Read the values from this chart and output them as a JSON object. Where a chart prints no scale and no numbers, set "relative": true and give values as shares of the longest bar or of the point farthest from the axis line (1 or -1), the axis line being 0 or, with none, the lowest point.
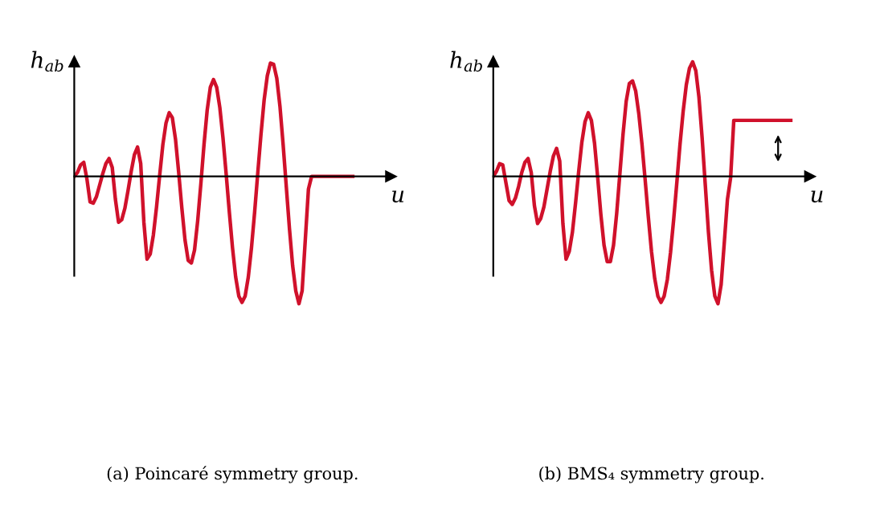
{
  "chart_data": [
    {
      "type": "line",
      "title": "(a) Poincaré symmetry group.",
      "xlabel": "u",
      "ylabel": "h$_{ab}$",
      "relative": true,
      "tick_labels": false,
      "marker": "none",
      "line_style": "solid",
      "categories": [
        null,
        null,
        null,
        null,
        null,
        null,
        null,
        null,
        null,
        null,
        null,
        null,
        null,
        null,
        null,
        null,
        null,
        null,
        null,
        null,
        null,
        null,
        null,
        null,
        null,
        null,
        null,
        null,
        null,
        null,
        null,
        null,
        null,
        null,
        null,
        null,
        null,
        null,
        null,
        null,
        null,
        null,
        null,
        null,
        null,
        null,
        null,
        null,
        null,
        null,
        null,
        null,
        null,
        null,
        null,
        null,
        null,
        null,
        null,
        null,
        null,
        null,
        null,
        null,
        null,
        null,
        null,
        null,
        null,
        null,
        null,
        null,
        null,
        null,
        null,
        null,
        null,
        null,
        null,
        null,
        null,
        null,
        null,
        null,
        null,
        null,
        null,
        null,
        null
      ],
      "series": [
        {
          "color": "#d0112b",
          "values": [
            0.0,
            0.03,
            0.09,
            0.11,
            -0.02,
            -0.2,
            -0.21,
            -0.16,
            -0.07,
            0.02,
            0.1,
            0.14,
            0.07,
            -0.18,
            -0.36,
            -0.34,
            -0.25,
            -0.11,
            0.04,
            0.17,
            0.23,
            0.1,
            -0.36,
            -0.65,
            -0.61,
            -0.46,
            -0.24,
            0.01,
            0.25,
            0.42,
            0.5,
            0.46,
            0.29,
            0.03,
            -0.25,
            -0.5,
            -0.66,
            -0.68,
            -0.58,
            -0.35,
            -0.06,
            0.25,
            0.52,
            0.7,
            0.76,
            0.7,
            0.54,
            0.3,
            0.02,
            -0.28,
            -0.56,
            -0.79,
            -0.94,
            -0.99,
            -0.94,
            -0.79,
            -0.56,
            -0.28,
            0.03,
            0.33,
            0.6,
            0.79,
            0.89,
            0.88,
            0.77,
            0.55,
            0.25,
            -0.08,
            -0.41,
            -0.7,
            -0.9,
            -1.0,
            -0.9,
            -0.5,
            -0.1,
            0.0,
            0.0,
            0.0,
            0.0,
            0.0,
            0.0,
            0.0,
            0.0,
            0.0,
            0.0,
            0.0,
            0.0,
            0.0,
            0.0
          ]
        }
      ]
    },
    {
      "type": "line",
      "title": "(b) BMS₄ symmetry group.",
      "xlabel": "u",
      "ylabel": "h$_{ab}$",
      "relative": true,
      "tick_labels": false,
      "marker": "none",
      "line_style": "solid",
      "categories": [
        null,
        null,
        null,
        null,
        null,
        null,
        null,
        null,
        null,
        null,
        null,
        null,
        null,
        null,
        null,
        null,
        null,
        null,
        null,
        null,
        null,
        null,
        null,
        null,
        null,
        null,
        null,
        null,
        null,
        null,
        null,
        null,
        null,
        null,
        null,
        null,
        null,
        null,
        null,
        null,
        null,
        null,
        null,
        null,
        null,
        null,
        null,
        null,
        null,
        null,
        null,
        null,
        null,
        null,
        null,
        null,
        null,
        null,
        null,
        null,
        null,
        null,
        null,
        null,
        null,
        null,
        null,
        null,
        null,
        null,
        null,
        null,
        null,
        null,
        null,
        null,
        null,
        null,
        null,
        null,
        null,
        null,
        null,
        null,
        null,
        null,
        null,
        null,
        null,
        null,
        null,
        null,
        null,
        null,
        null
      ],
      "series": [
        {
          "color": "#d0112b",
          "values": [
            0.0,
            0.04,
            0.1,
            0.09,
            -0.05,
            -0.19,
            -0.22,
            -0.17,
            -0.08,
            0.03,
            0.11,
            0.14,
            0.03,
            -0.23,
            -0.37,
            -0.33,
            -0.24,
            -0.1,
            0.04,
            0.16,
            0.22,
            0.12,
            -0.37,
            -0.65,
            -0.59,
            -0.44,
            -0.21,
            0.04,
            0.27,
            0.43,
            0.5,
            0.44,
            0.26,
            -0.01,
            -0.3,
            -0.54,
            -0.67,
            -0.67,
            -0.54,
            -0.29,
            0.02,
            0.33,
            0.59,
            0.73,
            0.75,
            0.67,
            0.49,
            0.25,
            -0.03,
            -0.32,
            -0.59,
            -0.8,
            -0.94,
            -0.99,
            -0.94,
            -0.81,
            -0.6,
            -0.34,
            -0.05,
            0.25,
            0.51,
            0.72,
            0.85,
            0.9,
            0.83,
            0.62,
            0.3,
            -0.07,
            -0.44,
            -0.74,
            -0.94,
            -1.0,
            -0.85,
            -0.52,
            -0.18,
            -0.01,
            0.44,
            0.44,
            0.44,
            0.44,
            0.44,
            0.44,
            0.44,
            0.44,
            0.44,
            0.44,
            0.44,
            0.44,
            0.44,
            0.44,
            0.44,
            0.44,
            0.44,
            0.44,
            0.44
          ]
        }
      ]
    }
  ]
}
